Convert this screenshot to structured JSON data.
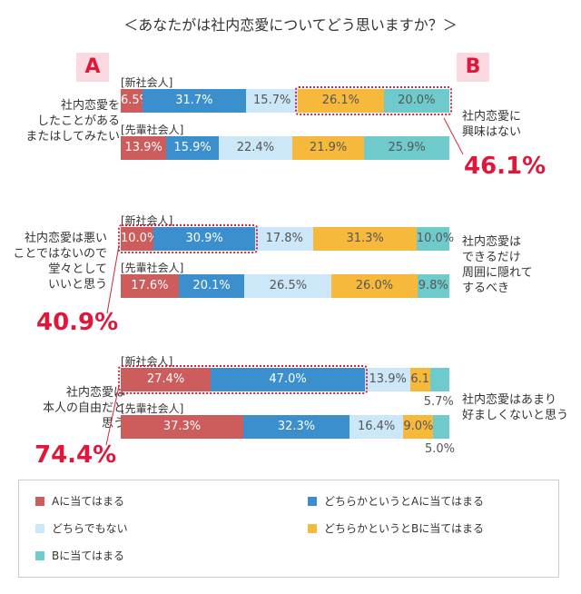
{
  "title": "＜あなたがは社内恋愛についてどう思いますか？＞",
  "badges": {
    "a": "A",
    "b": "B"
  },
  "colors": {
    "a": "#cd5c5c",
    "lean_a": "#3a8fcc",
    "neutral": "#cce7f8",
    "lean_b": "#f7b93c",
    "b": "#6fcbcb"
  },
  "chart_data": {
    "type": "bar",
    "stacked": true,
    "orientation": "horizontal",
    "title": "＜あなたがは社内恋愛についてどう思いますか？＞",
    "series_names": [
      "Aに当てはまる",
      "どちらかというとAに当てはまる",
      "どちらでもない",
      "どちらかというとBに当てはまる",
      "Bに当てはまる"
    ],
    "questions": [
      {
        "a_text": [
          "社内恋愛を",
          "したことがある",
          "またはしてみたい"
        ],
        "b_text": [
          "社内恋愛に",
          "興味はない"
        ],
        "highlight_total": "46.1%",
        "groups": [
          {
            "label": "[新社会人]",
            "values": [
              6.5,
              31.7,
              15.7,
              26.1,
              20.0
            ],
            "labels": [
              "6.5%",
              "31.7%",
              "15.7%",
              "26.1%",
              "20.0%"
            ]
          },
          {
            "label": "[先輩社会人]",
            "values": [
              13.9,
              15.9,
              22.4,
              21.9,
              25.9
            ],
            "labels": [
              "13.9%",
              "15.9%",
              "22.4%",
              "21.9%",
              "25.9%"
            ]
          }
        ]
      },
      {
        "a_text": [
          "社内恋愛は悪い",
          "ことではないので",
          "堂々として",
          "いいと思う"
        ],
        "b_text": [
          "社内恋愛は",
          "できるだけ",
          "周囲に隠れて",
          "するべき"
        ],
        "highlight_total": "40.9%",
        "groups": [
          {
            "label": "[新社会人]",
            "values": [
              10.0,
              30.9,
              17.8,
              31.3,
              10.0
            ],
            "labels": [
              "10.0%",
              "30.9%",
              "17.8%",
              "31.3%",
              "10.0%"
            ]
          },
          {
            "label": "[先輩社会人]",
            "values": [
              17.6,
              20.1,
              26.5,
              26.0,
              9.8
            ],
            "labels": [
              "17.6%",
              "20.1%",
              "26.5%",
              "26.0%",
              "9.8%"
            ]
          }
        ]
      },
      {
        "a_text": [
          "社内恋愛は",
          "本人の自由だと",
          "思う"
        ],
        "b_text": [
          "社内恋愛はあまり",
          "好ましくないと思う"
        ],
        "highlight_total": "74.4%",
        "groups": [
          {
            "label": "[新社会人]",
            "values": [
              27.4,
              47.0,
              13.9,
              6.1,
              5.7
            ],
            "labels": [
              "27.4%",
              "47.0%",
              "13.9%",
              "6.1%",
              "5.7%"
            ]
          },
          {
            "label": "[先輩社会人]",
            "values": [
              37.3,
              32.3,
              16.4,
              9.0,
              5.0
            ],
            "labels": [
              "37.3%",
              "32.3%",
              "16.4%",
              "9.0%",
              "5.0%"
            ]
          }
        ]
      }
    ]
  },
  "legend": [
    {
      "label": "Aに当てはまる"
    },
    {
      "label": "どちらかというとAに当てはまる"
    },
    {
      "label": "どちらでもない"
    },
    {
      "label": "どちらかというとBに当てはまる"
    },
    {
      "label": "Bに当てはまる"
    }
  ]
}
